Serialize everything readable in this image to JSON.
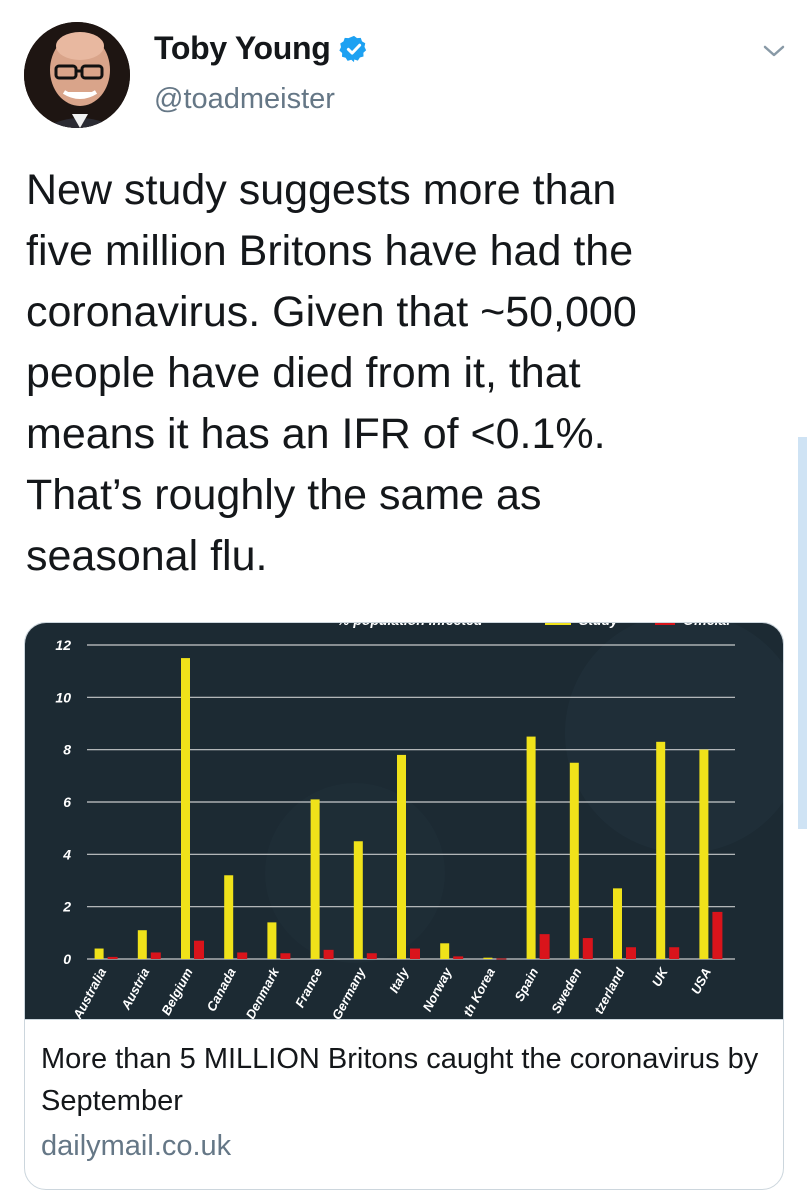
{
  "tweet": {
    "author_name": "Toby Young",
    "handle": "@toadmeister",
    "text": "New study suggests more than\nfive million Britons have had the\ncoronavirus. Given that ~50,000\npeople have died from it, that\nmeans it has an IFR of <0.1%.\nThat’s roughly the same as\nseasonal flu."
  },
  "icons": {
    "verified": "verified-badge-icon",
    "caret": "chevron-down-icon"
  },
  "colors": {
    "verified_blue": "#1da1f2",
    "study_series": "#f0e21a",
    "official_series": "#d9141b",
    "chart_bg": "#1c2a33"
  },
  "card": {
    "title": "More than 5 MILLION Britons caught the coronavirus by September",
    "domain": "dailymail.co.uk"
  },
  "chart_data": {
    "type": "bar",
    "categories": [
      "Australia",
      "Austria",
      "Belgium",
      "Canada",
      "Denmark",
      "France",
      "Germany",
      "Italy",
      "Norway",
      "South Korea",
      "Spain",
      "Sweden",
      "Switzerland",
      "UK",
      "USA"
    ],
    "tick_labels_visible": [
      "Australia",
      "Austria",
      "Belgium",
      "Canada",
      "Denmark",
      "France",
      "Germany",
      "Italy",
      "Norway",
      "th Korea",
      "Spain",
      "Sweden",
      "tzerland",
      "UK",
      "USA"
    ],
    "series": [
      {
        "values": [
          0.4,
          1.1,
          11.5,
          3.2,
          1.4,
          6.1,
          4.5,
          7.8,
          0.6,
          0.05,
          8.5,
          7.5,
          2.7,
          8.3,
          8.0
        ]
      },
      {
        "values": [
          0.08,
          0.25,
          0.7,
          0.25,
          0.22,
          0.35,
          0.22,
          0.4,
          0.1,
          0.02,
          0.95,
          0.8,
          0.45,
          0.45,
          1.8
        ]
      }
    ],
    "yticks": [
      0,
      2,
      4,
      6,
      8,
      10,
      12
    ],
    "ylim": [
      0,
      12
    ],
    "grid": true,
    "legend_text_fragments": [
      "% population infected",
      "Study",
      "Official"
    ],
    "legend_position": "top"
  }
}
